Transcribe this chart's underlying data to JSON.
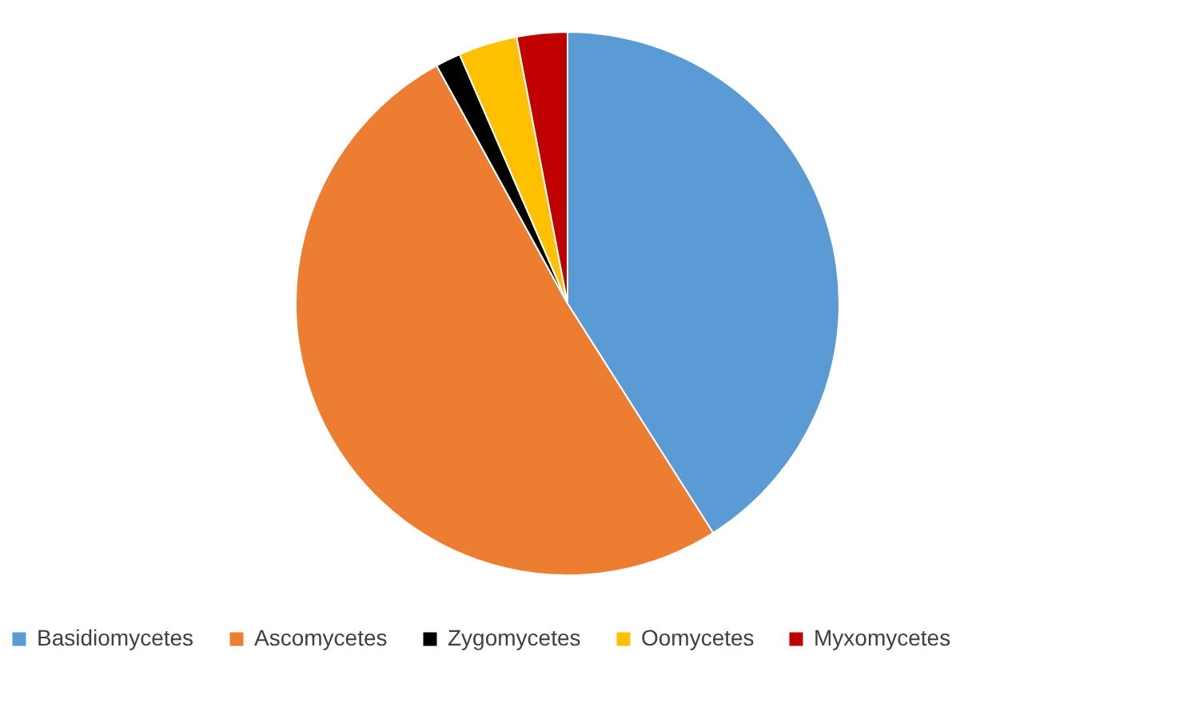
{
  "chart_data": {
    "type": "pie",
    "categories": [
      "Basidiomycetes",
      "Ascomycetes",
      "Zygomycetes",
      "Oomycetes",
      "Myxomycetes"
    ],
    "values": [
      41,
      51,
      1.5,
      3.5,
      3
    ],
    "colors": [
      "#5b9bd5",
      "#ed7d31",
      "#000000",
      "#ffc000",
      "#c00000"
    ],
    "legend": "bottom"
  }
}
